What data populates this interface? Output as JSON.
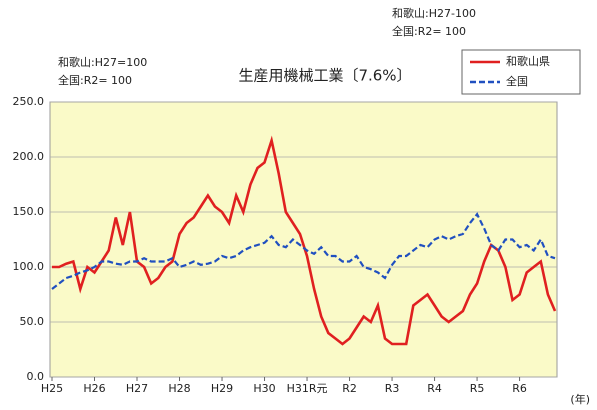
{
  "chart_data": {
    "type": "line",
    "title": "生産用機械工業〔7.6%〕",
    "annotations": [
      "和歌山:H27-100",
      "全国:R2= 100",
      "和歌山:H27=100",
      "全国:R2= 100"
    ],
    "xlabel": "(年)",
    "categories": [
      "H25",
      null,
      null,
      null,
      null,
      null,
      "H26",
      null,
      null,
      null,
      null,
      null,
      "H27",
      null,
      null,
      null,
      null,
      null,
      "H28",
      null,
      null,
      null,
      null,
      null,
      "H29",
      null,
      null,
      null,
      null,
      null,
      "H30",
      null,
      null,
      null,
      null,
      null,
      "H31R元",
      null,
      null,
      null,
      null,
      null,
      "R2",
      null,
      null,
      null,
      null,
      null,
      "R3",
      null,
      null,
      null,
      null,
      null,
      "R4",
      null,
      null,
      null,
      null,
      null,
      "R5",
      null,
      null,
      null,
      null,
      null,
      "R6",
      null,
      null,
      null,
      null,
      null
    ],
    "series": [
      {
        "name": "和歌山県",
        "color": "#e02020",
        "dash": false,
        "values": [
          100,
          100,
          103,
          105,
          80,
          100,
          95,
          105,
          115,
          145,
          120,
          150,
          105,
          100,
          85,
          90,
          100,
          105,
          130,
          140,
          145,
          155,
          165,
          155,
          150,
          140,
          165,
          150,
          175,
          190,
          195,
          215,
          185,
          150,
          140,
          130,
          110,
          80,
          55,
          40,
          35,
          30,
          35,
          45,
          55,
          50,
          65,
          35,
          30,
          30,
          30,
          65,
          70,
          75,
          65,
          55,
          50,
          55,
          60,
          75,
          85,
          105,
          120,
          115,
          100,
          70,
          75,
          95,
          100,
          105,
          75,
          60
        ]
      },
      {
        "name": "全国",
        "color": "#2050c0",
        "dash": true,
        "values": [
          80,
          85,
          90,
          92,
          95,
          97,
          100,
          105,
          105,
          103,
          102,
          105,
          105,
          108,
          105,
          105,
          105,
          108,
          100,
          102,
          105,
          102,
          103,
          105,
          110,
          108,
          110,
          115,
          118,
          120,
          122,
          128,
          120,
          118,
          125,
          120,
          115,
          112,
          118,
          110,
          110,
          105,
          105,
          110,
          100,
          98,
          95,
          90,
          102,
          110,
          110,
          115,
          120,
          118,
          125,
          128,
          125,
          128,
          130,
          140,
          148,
          135,
          120,
          115,
          125,
          125,
          118,
          120,
          115,
          125,
          110,
          108
        ]
      }
    ],
    "ylim": [
      0,
      250
    ],
    "yticks": [
      {
        "value": 0,
        "label": "0.0"
      },
      {
        "value": 50,
        "label": "50.0"
      },
      {
        "value": 100,
        "label": "100.0"
      },
      {
        "value": 150,
        "label": "150.0"
      },
      {
        "value": 200,
        "label": "200.0"
      },
      {
        "value": 250,
        "label": "250.0"
      }
    ],
    "grid": true,
    "legend": "upper right"
  }
}
